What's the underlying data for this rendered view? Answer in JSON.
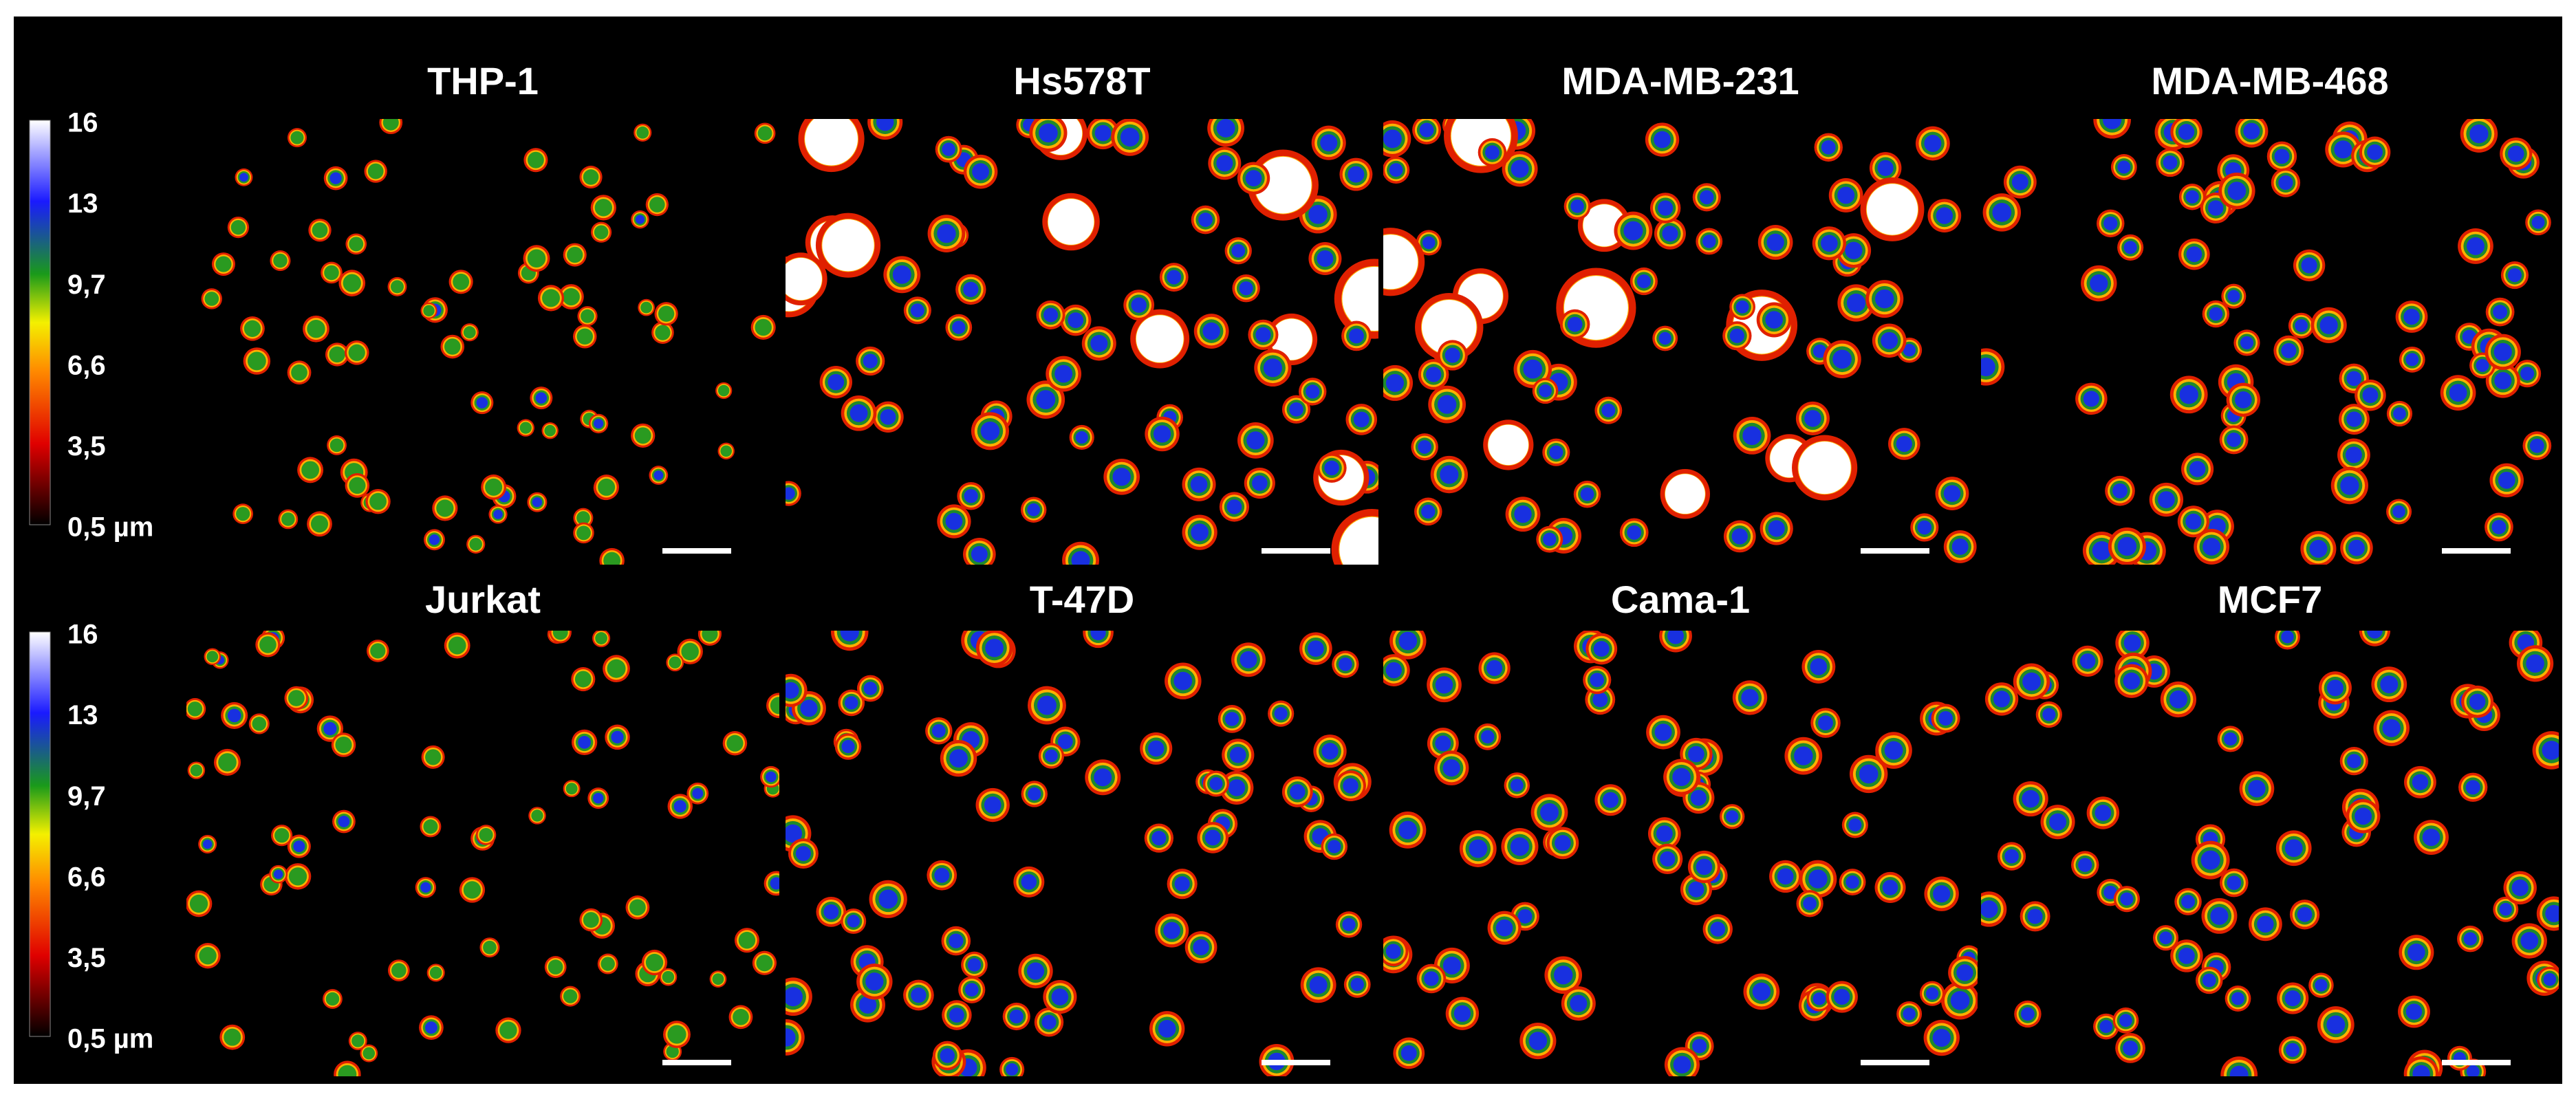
{
  "colorbar_labels": [
    "16",
    "13",
    "9,7",
    "6,6",
    "3,5",
    "0,5 µm"
  ],
  "panels": [
    {
      "title": "THP-1"
    },
    {
      "title": "Hs578T"
    },
    {
      "title": "MDA-MB-231"
    },
    {
      "title": "MDA-MB-468"
    },
    {
      "title": "Jurkat"
    },
    {
      "title": "T-47D"
    },
    {
      "title": "Cama-1"
    },
    {
      "title": "MCF7"
    }
  ]
}
